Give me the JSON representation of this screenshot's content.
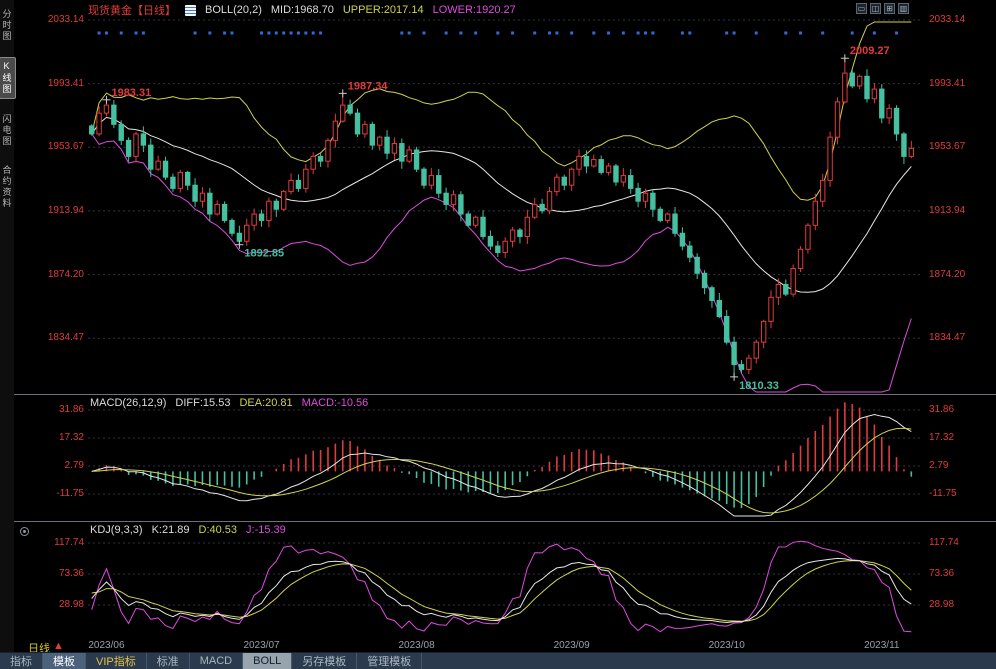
{
  "colors": {
    "red": "#e03b3c",
    "teal": "#45c0a0",
    "yellow": "#d2d24a",
    "magenta": "#e04ae0",
    "white": "#e6e6e6",
    "blue_dot": "#2e6bd6",
    "grid": "#2e3642",
    "marker": "#cccccc"
  },
  "sidebar": {
    "items": [
      {
        "label": "分时图",
        "active": false
      },
      {
        "label": "K线图",
        "active": true
      },
      {
        "label": "闪电图",
        "active": false
      },
      {
        "label": "合约资料",
        "active": false
      }
    ]
  },
  "header": {
    "title": "现货黄金【日线】",
    "indicator": "BOLL(20,2)",
    "mid_label": "MID:1968.70",
    "upper_label": "UPPER:2017.14",
    "lower_label": "LOWER:1920.27",
    "window_buttons": [
      "▭",
      "◫",
      "⊞",
      "▥"
    ]
  },
  "main_axis": {
    "labels": [
      "2033.14",
      "1993.41",
      "1953.67",
      "1913.94",
      "1874.20",
      "1834.47"
    ]
  },
  "macd": {
    "header": {
      "name": "MACD(26,12,9)",
      "diff": "DIFF:15.53",
      "dea": "DEA:20.81",
      "macd": "MACD:-10.56"
    },
    "axis_labels": [
      "31.86",
      "17.32",
      "2.79",
      "-11.75"
    ]
  },
  "kdj": {
    "header": {
      "name": "KDJ(9,3,3)",
      "k": "K:21.89",
      "d": "D:40.53",
      "j": "J:-15.39"
    },
    "axis_labels": [
      "117.74",
      "73.36",
      "28.98"
    ]
  },
  "x_axis": {
    "months": [
      "2023/06",
      "2023/07",
      "2023/08",
      "2023/09",
      "2023/10",
      "2023/11"
    ],
    "month_start_idx": [
      2,
      23,
      44,
      65,
      86,
      107
    ]
  },
  "period": {
    "label": "日线",
    "arrow": "▲"
  },
  "toolbar": {
    "items": [
      {
        "label": "指标",
        "style": "plain"
      },
      {
        "label": "模板",
        "style": "selected"
      },
      {
        "label": "VIP指标",
        "style": "vip"
      },
      {
        "label": "标准",
        "style": "plain"
      },
      {
        "label": "MACD",
        "style": "plain"
      },
      {
        "label": "BOLL",
        "style": "boll"
      },
      {
        "label": "另存模板",
        "style": "plain"
      },
      {
        "label": "管理模板",
        "style": "plain"
      }
    ]
  },
  "annotations": [
    {
      "idx": 2,
      "price": 1983.31,
      "text": "1983.31",
      "color": "red",
      "pos": "above"
    },
    {
      "idx": 34,
      "price": 1987.34,
      "text": "1987.34",
      "color": "red",
      "pos": "above"
    },
    {
      "idx": 20,
      "price": 1892.85,
      "text": "1892.85",
      "color": "teal",
      "pos": "below"
    },
    {
      "idx": 87,
      "price": 1810.33,
      "text": "1810.33",
      "color": "teal",
      "pos": "below"
    },
    {
      "idx": 102,
      "price": 2009.27,
      "text": "2009.27",
      "color": "red",
      "pos": "above"
    }
  ],
  "chart_data": {
    "type": "candlestick",
    "instrument": "现货黄金",
    "period": "日线",
    "panels": [
      "BOLL(20,2)",
      "MACD(26,12,9)",
      "KDJ(9,3,3)"
    ],
    "price_axis": [
      2033.14,
      1993.41,
      1953.67,
      1913.94,
      1874.2,
      1834.47
    ],
    "macd_axis": [
      31.86,
      17.32,
      2.79,
      -11.75
    ],
    "kdj_axis": [
      117.74,
      73.36,
      28.98
    ],
    "key_points": {
      "june_high": 1983.31,
      "june_low": 1892.85,
      "july_high": 1987.34,
      "oct_low": 1810.33,
      "oct_high": 2009.27
    },
    "latest": {
      "boll_mid": 1968.7,
      "boll_upper": 2017.14,
      "boll_lower": 1920.27,
      "diff": 15.53,
      "dea": 20.81,
      "macd": -10.56,
      "k": 21.89,
      "d": 40.53,
      "j": -15.39
    },
    "closes": [
      1962,
      1975,
      1980,
      1968,
      1958,
      1948,
      1962,
      1955,
      1940,
      1945,
      1935,
      1928,
      1938,
      1930,
      1920,
      1925,
      1912,
      1918,
      1908,
      1900,
      1895,
      1905,
      1912,
      1908,
      1920,
      1915,
      1926,
      1933,
      1928,
      1940,
      1948,
      1945,
      1958,
      1970,
      1980,
      1975,
      1962,
      1968,
      1955,
      1960,
      1950,
      1956,
      1945,
      1952,
      1940,
      1930,
      1936,
      1925,
      1918,
      1924,
      1912,
      1905,
      1910,
      1898,
      1892,
      1888,
      1895,
      1902,
      1898,
      1910,
      1918,
      1914,
      1926,
      1935,
      1930,
      1940,
      1948,
      1942,
      1946,
      1938,
      1942,
      1932,
      1936,
      1928,
      1920,
      1925,
      1915,
      1908,
      1912,
      1900,
      1892,
      1885,
      1875,
      1866,
      1858,
      1848,
      1832,
      1818,
      1815,
      1822,
      1832,
      1845,
      1860,
      1868,
      1862,
      1878,
      1890,
      1905,
      1920,
      1933,
      1960,
      1982,
      2000,
      1992,
      1998,
      1984,
      1990,
      1972,
      1978,
      1962,
      1948,
      1953
    ],
    "event_dot_idx": [
      1,
      2,
      4,
      6,
      7,
      14,
      16,
      18,
      19,
      23,
      24,
      25,
      26,
      27,
      28,
      29,
      30,
      31,
      42,
      43,
      45,
      48,
      50,
      52,
      55,
      57,
      60,
      62,
      63,
      65,
      68,
      70,
      72,
      74,
      75,
      76,
      80,
      81,
      86,
      87,
      90,
      94,
      96,
      99,
      103,
      106,
      109
    ]
  }
}
